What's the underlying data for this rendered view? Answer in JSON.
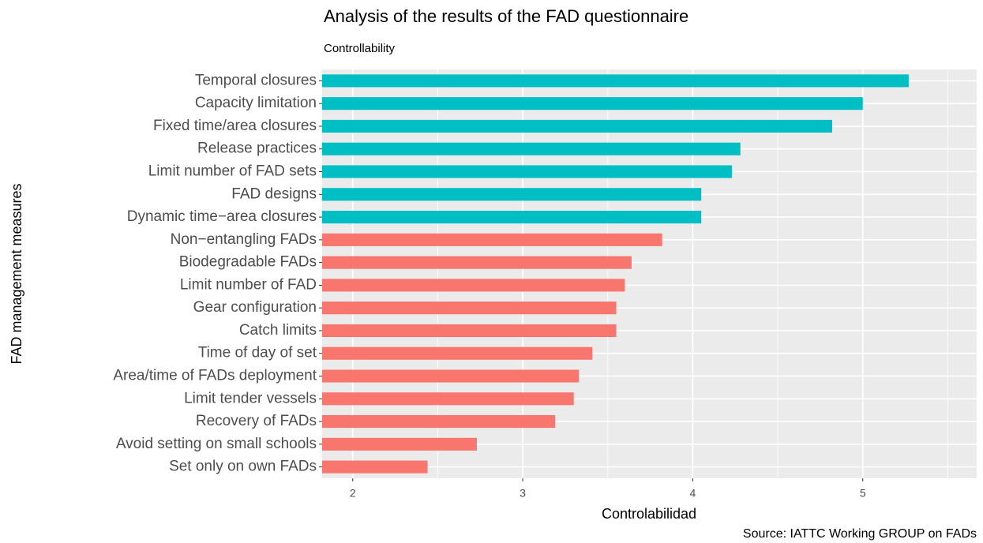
{
  "chart_data": {
    "type": "bar",
    "orientation": "horizontal",
    "title": "Analysis of the results of the FAD questionnaire",
    "subtitle": "Controllability",
    "x_label": "Controlabilidad",
    "y_label": "FAD management measures",
    "caption": "Source: IATTC Working GROUP on FADs",
    "categories": [
      "Temporal closures",
      "Capacity limitation",
      "Fixed time/area closures",
      "Release practices",
      "Limit  number of FAD sets",
      "FAD designs",
      "Dynamic time−area closures",
      "Non−entangling FADs",
      "Biodegradable FADs",
      "Limit  number of FAD",
      "Gear configuration",
      "Catch limits",
      "Time of day of set",
      "Area/time of FADs deployment",
      "Limit  tender vessels",
      "Recovery of FADs",
      "Avoid setting on small schools",
      "Set only on own FADs"
    ],
    "values": [
      5.27,
      5.0,
      4.82,
      4.28,
      4.23,
      4.05,
      4.05,
      3.82,
      3.64,
      3.6,
      3.55,
      3.55,
      3.41,
      3.33,
      3.3,
      3.19,
      2.73,
      2.44
    ],
    "colors": [
      "#00bfc4",
      "#00bfc4",
      "#00bfc4",
      "#00bfc4",
      "#00bfc4",
      "#00bfc4",
      "#00bfc4",
      "#f8766d",
      "#f8766d",
      "#f8766d",
      "#f8766d",
      "#f8766d",
      "#f8766d",
      "#f8766d",
      "#f8766d",
      "#f8766d",
      "#f8766d",
      "#f8766d"
    ],
    "xlim": [
      1.82,
      5.67
    ],
    "xticks": [
      2,
      3,
      4,
      5
    ],
    "grid": true
  }
}
